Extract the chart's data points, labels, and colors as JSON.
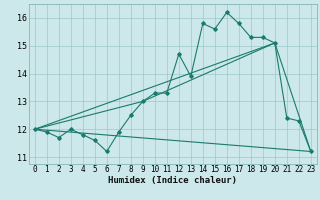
{
  "title": "",
  "xlabel": "Humidex (Indice chaleur)",
  "bg_color": "#cce8ea",
  "grid_color": "#9dc8cc",
  "line_color": "#1a7a6e",
  "xlim": [
    -0.5,
    23.5
  ],
  "ylim": [
    10.75,
    16.5
  ],
  "xticks": [
    0,
    1,
    2,
    3,
    4,
    5,
    6,
    7,
    8,
    9,
    10,
    11,
    12,
    13,
    14,
    15,
    16,
    17,
    18,
    19,
    20,
    21,
    22,
    23
  ],
  "yticks": [
    11,
    12,
    13,
    14,
    15,
    16
  ],
  "line1_x": [
    0,
    1,
    2,
    3,
    4,
    5,
    6,
    7,
    8,
    9,
    10,
    11,
    12,
    13,
    14,
    15,
    16,
    17,
    18,
    19,
    20,
    21,
    22,
    23
  ],
  "line1_y": [
    12.0,
    11.9,
    11.7,
    12.0,
    11.8,
    11.6,
    11.2,
    11.9,
    12.5,
    13.0,
    13.3,
    13.3,
    14.7,
    13.9,
    15.8,
    15.6,
    16.2,
    15.8,
    15.3,
    15.3,
    15.1,
    12.4,
    12.3,
    11.2
  ],
  "line2_x": [
    0,
    20
  ],
  "line2_y": [
    12.0,
    15.1
  ],
  "line3_x": [
    0,
    9,
    20,
    23
  ],
  "line3_y": [
    12.0,
    13.0,
    15.1,
    11.2
  ],
  "line4_x": [
    0,
    23
  ],
  "line4_y": [
    12.0,
    11.2
  ]
}
